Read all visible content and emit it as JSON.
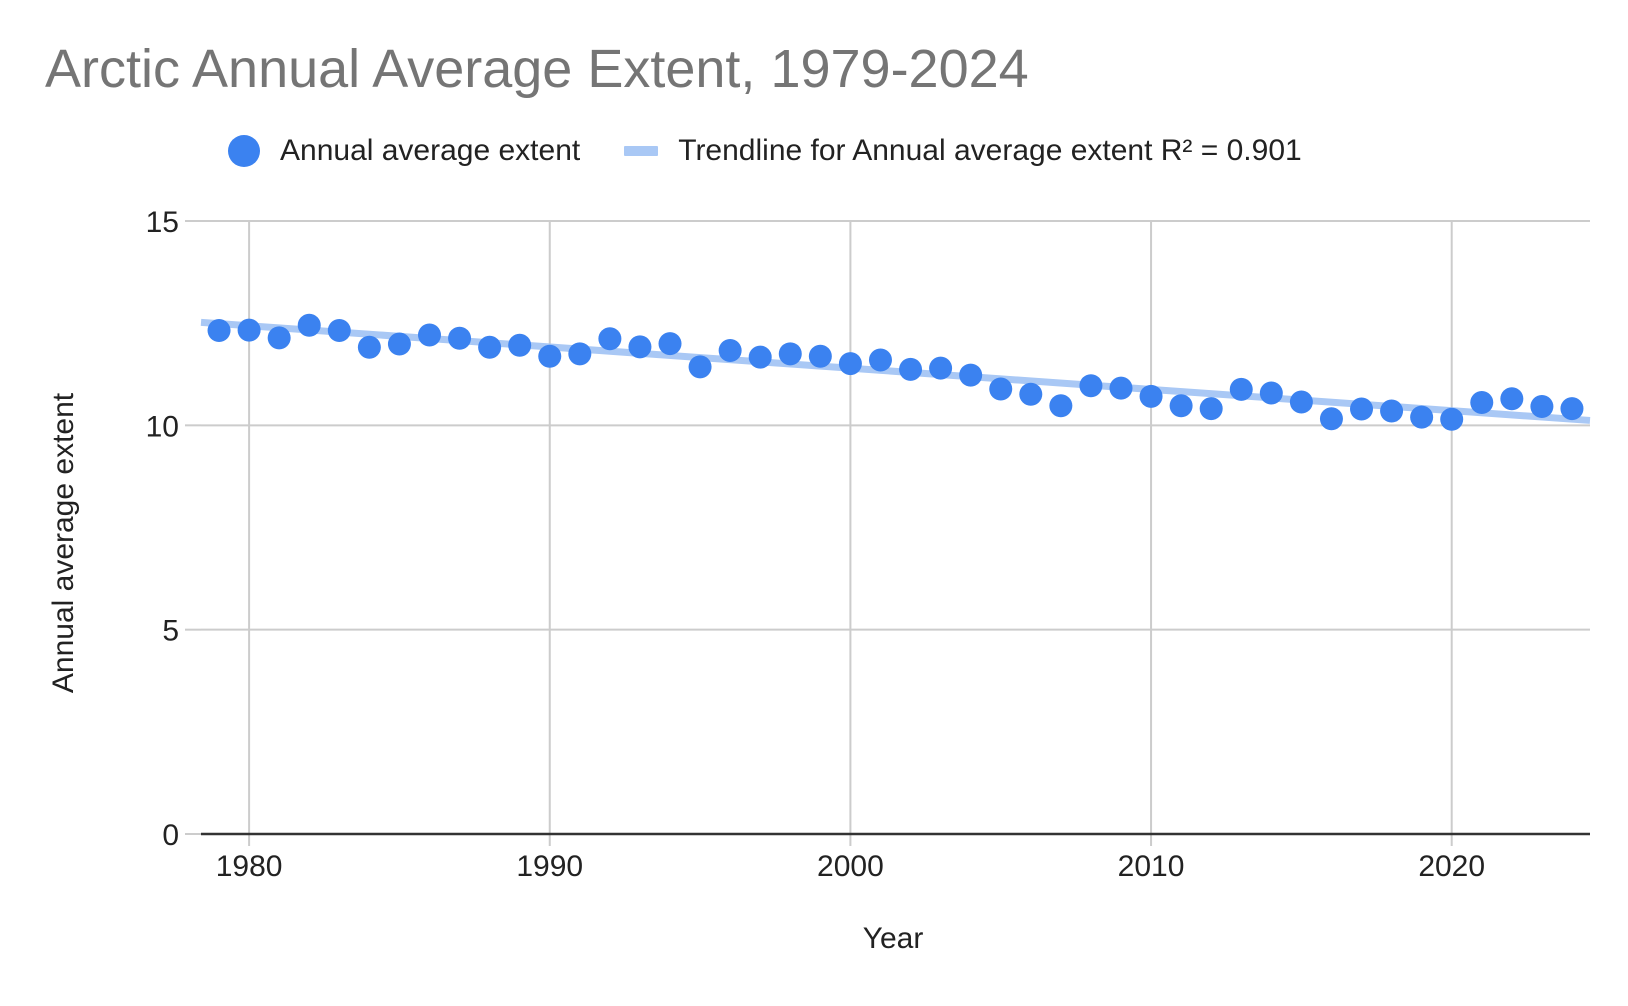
{
  "colors": {
    "point": "#3b82f0",
    "trendline": "#a9c8f5",
    "grid": "#cccccc",
    "axis": "#333333",
    "title": "#757575",
    "text": "#222222"
  },
  "chart_data": {
    "type": "scatter",
    "title": "Arctic Annual Average Extent, 1979-2024",
    "xlabel": "Year",
    "ylabel": "Annual average extent",
    "xlim": [
      1978.4,
      2024.6
    ],
    "ylim": [
      0,
      15
    ],
    "x_ticks": [
      1980,
      1990,
      2000,
      2010,
      2020
    ],
    "y_ticks": [
      0,
      5,
      10,
      15
    ],
    "grid": true,
    "legend_position": "top",
    "series": [
      {
        "name": "Annual average extent",
        "type": "scatter",
        "x": [
          1979,
          1980,
          1981,
          1982,
          1983,
          1984,
          1985,
          1986,
          1987,
          1988,
          1989,
          1990,
          1991,
          1992,
          1993,
          1994,
          1995,
          1996,
          1997,
          1998,
          1999,
          2000,
          2001,
          2002,
          2003,
          2004,
          2005,
          2006,
          2007,
          2008,
          2009,
          2010,
          2011,
          2012,
          2013,
          2014,
          2015,
          2016,
          2017,
          2018,
          2019,
          2020,
          2021,
          2022,
          2023,
          2024
        ],
        "y": [
          12.32,
          12.33,
          12.14,
          12.45,
          12.32,
          11.91,
          11.99,
          12.21,
          12.13,
          11.91,
          11.96,
          11.69,
          11.75,
          12.12,
          11.92,
          12.0,
          11.43,
          11.83,
          11.67,
          11.75,
          11.69,
          11.51,
          11.6,
          11.37,
          11.4,
          11.23,
          10.89,
          10.76,
          10.48,
          10.97,
          10.91,
          10.71,
          10.48,
          10.41,
          10.88,
          10.79,
          10.57,
          10.16,
          10.4,
          10.35,
          10.2,
          10.15,
          10.56,
          10.65,
          10.46,
          10.41
        ]
      },
      {
        "name": "Trendline for Annual average extent R² = 0.901",
        "type": "line",
        "x": [
          1978.4,
          2024.6
        ],
        "y": [
          12.52,
          10.12
        ]
      }
    ]
  }
}
